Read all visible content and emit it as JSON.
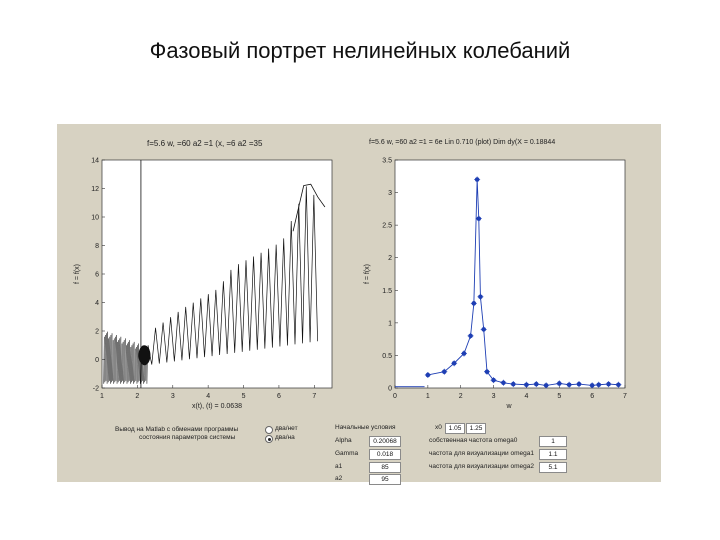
{
  "slide": {
    "title": "Фазовый портрет нелинейных колебаний"
  },
  "left_plot": {
    "title": "f=5.6 w, =60 a2 =1 (x, =6 a2 =35",
    "ylabel": "f = f(x)",
    "xlabel": "x(t), (t) = 0.0638"
  },
  "right_plot": {
    "title": "f=5.6 w, =60 a2 =1 = 6e Lin 0.710 (plot) Dim dy(X = 0.18844",
    "ylabel": "f = f(x)",
    "xlabel": "w"
  },
  "controls": {
    "mode_label_1": "Вывод на Matlab с обменами программы",
    "mode_label_2": "состояния параметров системы",
    "radio_1_label": "два/нет",
    "radio_2_label": "два/на",
    "start_conditions_label": "Начальные условия",
    "x0_label": "x0",
    "x0_value_1": "1.05",
    "x0_value_2": "1.25",
    "alpha_label": "Alpha",
    "alpha_value": "0.20068",
    "gamma_label": "Gamma",
    "gamma_value": "0.018",
    "a1_label": "a1",
    "a1_value": "85",
    "a2_label": "a2",
    "a2_value": "95",
    "omega0_label": "собственная частота omega0",
    "omega0_value": "1",
    "omega1_label": "частота для визуализации omega1",
    "omega1_value": "1.1",
    "omega2_label": "частота для визуализации omega2",
    "omega2_value": "5.1"
  },
  "chart_data": [
    {
      "type": "line",
      "title": "f=5.6 w, =60 a2 =1 (x, =6 a2 =35",
      "xlim": [
        1,
        7.5
      ],
      "ylim": [
        -2,
        14
      ],
      "x_ticks": [
        1,
        2,
        3,
        4,
        5,
        6,
        7
      ],
      "y_ticks": [
        -2,
        0,
        2,
        4,
        6,
        8,
        10,
        12,
        14
      ],
      "vertical_marker_x": 2.1,
      "trajectory_description": "phase trajectory with dense oscillations near x between 1 and 2.3 and growing peaks to the right",
      "envelope_peaks": [
        {
          "x": 2.5,
          "y": 2.2
        },
        {
          "x": 3.3,
          "y": 3.6
        },
        {
          "x": 4.3,
          "y": 5.0
        },
        {
          "x": 4.7,
          "y": 6.5
        },
        {
          "x": 5.5,
          "y": 7.5
        },
        {
          "x": 6.1,
          "y": 8.3
        },
        {
          "x": 6.8,
          "y": 12.3
        },
        {
          "x": 7.2,
          "y": 10.7
        }
      ]
    },
    {
      "type": "line",
      "title": "f=5.6 w, =60 a2 =1 = 6e Lin 0.710 (plot) Dim dy(X = 0.18844",
      "xlim": [
        0,
        7
      ],
      "ylim": [
        0,
        3.5
      ],
      "x_ticks": [
        0,
        1,
        2,
        3,
        4,
        5,
        6,
        7
      ],
      "y_ticks": [
        0,
        0.5,
        1,
        1.5,
        2,
        2.5,
        3,
        3.5
      ],
      "x": [
        1.0,
        1.5,
        1.8,
        2.1,
        2.3,
        2.4,
        2.5,
        2.55,
        2.6,
        2.7,
        2.8,
        3.0,
        3.3,
        3.6,
        4.0,
        4.3,
        4.6,
        5.0,
        5.3,
        5.6,
        6.0,
        6.2,
        6.5,
        6.8
      ],
      "y": [
        0.2,
        0.25,
        0.38,
        0.53,
        0.8,
        1.3,
        3.2,
        2.6,
        1.4,
        0.9,
        0.25,
        0.12,
        0.08,
        0.06,
        0.05,
        0.06,
        0.04,
        0.07,
        0.05,
        0.06,
        0.04,
        0.05,
        0.06,
        0.05
      ],
      "flat_segment": {
        "x": [
          0,
          0.9
        ],
        "y": 0.02
      },
      "color": "#1f3fb4"
    }
  ]
}
